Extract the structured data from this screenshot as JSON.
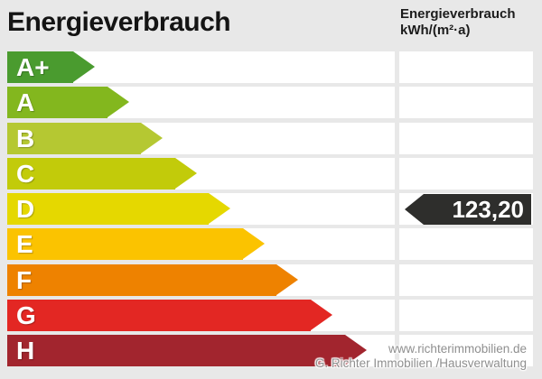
{
  "header": {
    "title": "Energieverbrauch",
    "unit_line1": "Energieverbrauch",
    "unit_line2": "kWh/(m²·a)"
  },
  "watermark": {
    "line1": "www.richterimmobilien.de",
    "line2": "G. Richter Immobilien /Hausverwaltung"
  },
  "colors": {
    "background": "#e8e8e8",
    "cell_white": "#ffffff",
    "marker_dark": "#2e2e2c",
    "title_text": "#141414",
    "watermark_text": "#8f8f8f"
  },
  "chart_data": {
    "type": "bar",
    "orientation": "horizontal",
    "title": "Energieverbrauch",
    "unit": "kWh/(m²·a)",
    "categories": [
      "A+",
      "A",
      "B",
      "C",
      "D",
      "E",
      "F",
      "G",
      "H"
    ],
    "values": [
      97,
      135,
      172,
      210,
      247,
      285,
      322,
      360,
      398
    ],
    "values_note": "fixed decorative rating-scale bar lengths in px, increasing per class",
    "bar_colors": [
      "#4a9b2f",
      "#83b71e",
      "#b5c832",
      "#c2cb0a",
      "#e5d800",
      "#fbc300",
      "#ee8200",
      "#e32723",
      "#a2252e"
    ],
    "marker": {
      "value": 123.2,
      "display": "123,20",
      "category": "D"
    },
    "legend_position": "none",
    "grid": false
  }
}
